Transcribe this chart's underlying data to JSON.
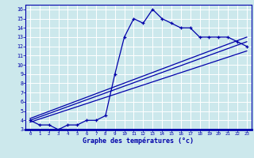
{
  "xlabel": "Graphe des températures (°c)",
  "bg_color": "#cce8ec",
  "grid_color": "#ffffff",
  "line_color": "#0000aa",
  "xlim": [
    -0.5,
    23.5
  ],
  "ylim": [
    3,
    16.5
  ],
  "xticks": [
    0,
    1,
    2,
    3,
    4,
    5,
    6,
    7,
    8,
    9,
    10,
    11,
    12,
    13,
    14,
    15,
    16,
    17,
    18,
    19,
    20,
    21,
    22,
    23
  ],
  "yticks": [
    3,
    4,
    5,
    6,
    7,
    8,
    9,
    10,
    11,
    12,
    13,
    14,
    15,
    16
  ],
  "main_x": [
    0,
    1,
    2,
    3,
    4,
    5,
    6,
    7,
    8,
    9,
    10,
    11,
    12,
    13,
    14,
    15,
    16,
    17,
    18,
    19,
    20,
    21,
    22,
    23
  ],
  "main_y": [
    4.0,
    3.5,
    3.5,
    3.0,
    3.5,
    3.5,
    4.0,
    4.0,
    4.5,
    9.0,
    13.0,
    15.0,
    14.5,
    16.0,
    15.0,
    14.5,
    14.0,
    14.0,
    13.0,
    13.0,
    13.0,
    13.0,
    12.5,
    12.0
  ],
  "trend1_x": [
    0,
    23
  ],
  "trend1_y": [
    4.0,
    12.5
  ],
  "trend2_x": [
    0,
    23
  ],
  "trend2_y": [
    3.8,
    11.5
  ],
  "trend3_x": [
    0,
    23
  ],
  "trend3_y": [
    4.2,
    13.0
  ]
}
